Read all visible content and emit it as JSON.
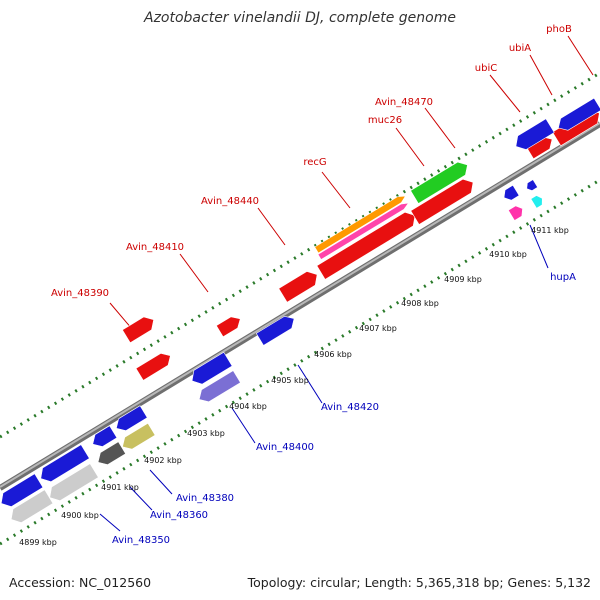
{
  "title": "Azotobacter vinelandii DJ, complete genome",
  "footer": {
    "accession": "Accession: NC_012560",
    "summary": "Topology: circular; Length: 5,365,318 bp; Genes: 5,132"
  },
  "colors": {
    "forward_gene": "#e81010",
    "reverse_gene": "#1a1ad6",
    "forward_label": "#cc0000",
    "reverse_label": "#0000bb",
    "backbone": "#8c8c8c",
    "dots": "#2a7a2a"
  },
  "ticks": [
    "4899 kbp",
    "4900 kbp",
    "4901 kbp",
    "4902 kbp",
    "4903 kbp",
    "4904 kbp",
    "4905 kbp",
    "4906 kbp",
    "4907 kbp",
    "4908 kbp",
    "4909 kbp",
    "4910 kbp",
    "4911 kbp"
  ],
  "forward_labels": [
    "Avin_48390",
    "Avin_48410",
    "Avin_48440",
    "recG",
    "muc26",
    "Avin_48470",
    "ubiC",
    "ubiA",
    "phoB"
  ],
  "reverse_labels": [
    "Avin_48350",
    "Avin_48360",
    "Avin_48380",
    "Avin_48400",
    "Avin_48420",
    "hupA"
  ]
}
